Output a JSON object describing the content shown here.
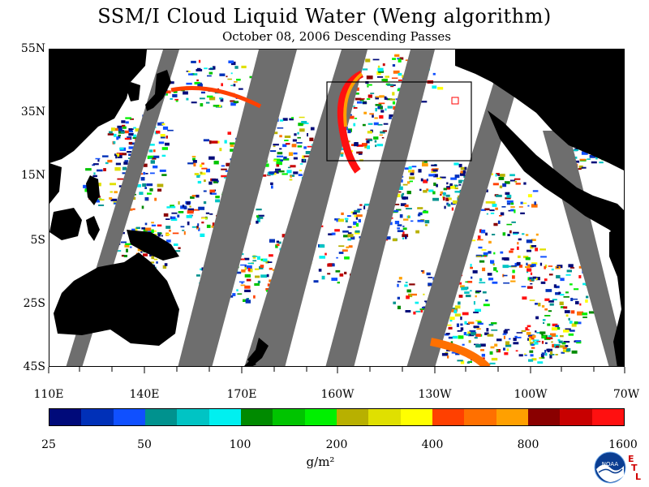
{
  "title": "SSM/I Cloud Liquid Water (Weng algorithm)",
  "subtitle": "October 08, 2006  Descending Passes",
  "map": {
    "lat_labels": [
      "55N",
      "35N",
      "15N",
      "5S",
      "25S",
      "45S"
    ],
    "lon_labels": [
      "110E",
      "140E",
      "170E",
      "160W",
      "130W",
      "100W",
      "70W"
    ],
    "land_color": "#000000",
    "gap_color": "#6e6e6e",
    "ocean_clear_color": "#ffffff"
  },
  "colorbar": {
    "colors": [
      "#000a7a",
      "#0030b8",
      "#1050ff",
      "#00928e",
      "#00c4c4",
      "#00f0f0",
      "#008a00",
      "#00c400",
      "#00f000",
      "#b8b000",
      "#e0e000",
      "#ffff00",
      "#ff4000",
      "#ff7000",
      "#ffa000",
      "#8a0000",
      "#c80000",
      "#ff1010"
    ],
    "tick_labels": [
      "25",
      "50",
      "100",
      "200",
      "400",
      "800",
      "1600"
    ],
    "units": "g/m²"
  },
  "logo": {
    "noaa_text": "NOAA",
    "etl_letters": [
      "E",
      "T",
      "L"
    ]
  }
}
